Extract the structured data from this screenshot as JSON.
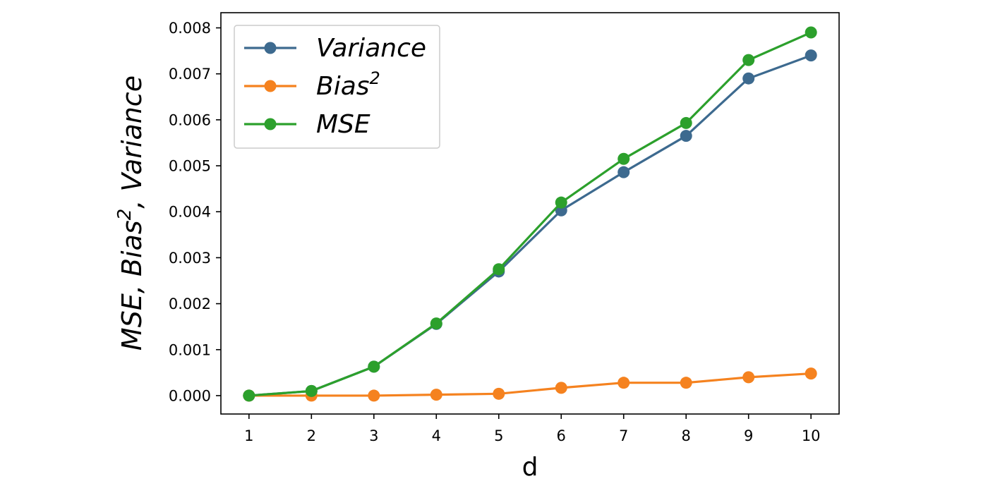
{
  "chart_data": {
    "type": "line",
    "title": "",
    "xlabel": "d",
    "ylabel": {
      "text": "MSE, Bias², Variance",
      "prefix": "MSE, Bias",
      "sup": "2",
      "suffix": ", Variance"
    },
    "x": [
      1,
      2,
      3,
      4,
      5,
      6,
      7,
      8,
      9,
      10
    ],
    "xticks": [
      "1",
      "2",
      "3",
      "4",
      "5",
      "6",
      "7",
      "8",
      "9",
      "10"
    ],
    "xlim": [
      0.55,
      10.45
    ],
    "ylim": [
      -0.0004,
      0.00833
    ],
    "yticks": [
      "0.000",
      "0.001",
      "0.002",
      "0.003",
      "0.004",
      "0.005",
      "0.006",
      "0.007",
      "0.008"
    ],
    "ytick_values": [
      0,
      0.001,
      0.002,
      0.003,
      0.004,
      0.005,
      0.006,
      0.007,
      0.008
    ],
    "grid": false,
    "legend_position": "top-left",
    "series": [
      {
        "name": "Variance",
        "label_main": "Variance",
        "label_sup": "",
        "color": "#3d6a8f",
        "values": [
          0.0,
          0.0001,
          0.00063,
          0.00156,
          0.0027,
          0.00403,
          0.00486,
          0.00565,
          0.0069,
          0.0074
        ]
      },
      {
        "name": "Bias²",
        "label_main": "Bias",
        "label_sup": "2",
        "color": "#f5821f",
        "values": [
          0.0,
          0.0,
          0.0,
          2e-05,
          4e-05,
          0.00017,
          0.00028,
          0.00028,
          0.0004,
          0.00048
        ]
      },
      {
        "name": "MSE",
        "label_main": "MSE",
        "label_sup": "",
        "color": "#2ca02c",
        "values": [
          0.0,
          0.0001,
          0.00063,
          0.00157,
          0.00275,
          0.0042,
          0.00515,
          0.00593,
          0.0073,
          0.0079
        ]
      }
    ]
  }
}
